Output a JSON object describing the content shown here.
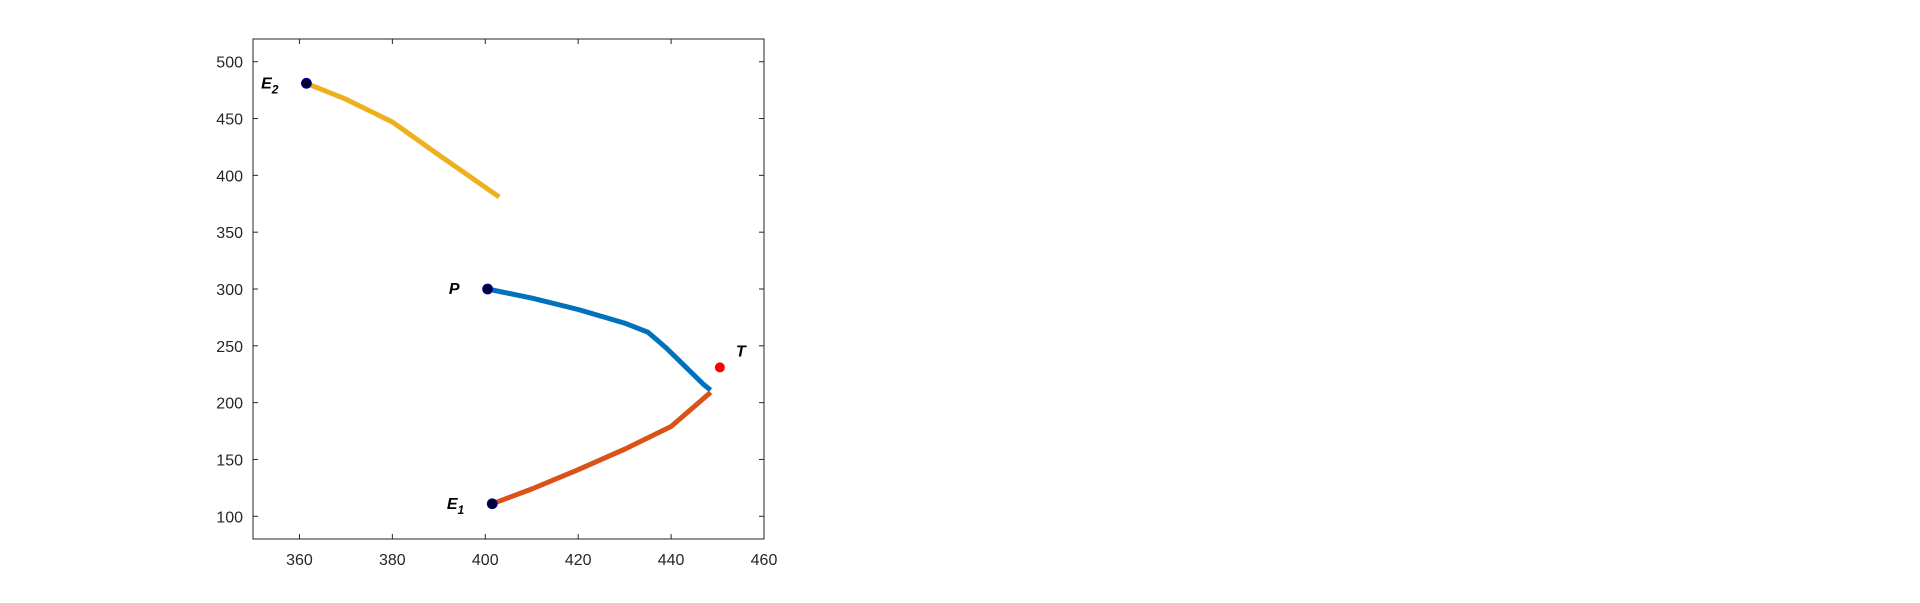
{
  "chart_data": {
    "type": "line",
    "title": "",
    "xlabel": "",
    "ylabel": "",
    "xlim": [
      350,
      460
    ],
    "ylim": [
      80,
      520
    ],
    "xticks": [
      360,
      380,
      400,
      420,
      440,
      460
    ],
    "yticks": [
      100,
      150,
      200,
      250,
      300,
      350,
      400,
      450,
      500
    ],
    "grid": false,
    "box": true,
    "series": [
      {
        "color": "#0072BD",
        "points": [
          [
            400.5,
            300
          ],
          [
            410,
            292
          ],
          [
            420,
            282
          ],
          [
            430,
            270
          ],
          [
            435,
            262
          ],
          [
            437,
            255
          ],
          [
            439,
            248
          ],
          [
            441,
            240
          ],
          [
            443,
            232
          ],
          [
            445,
            224
          ],
          [
            447,
            216
          ],
          [
            448.5,
            211
          ]
        ]
      },
      {
        "color": "#D95319",
        "points": [
          [
            401.5,
            111
          ],
          [
            410,
            124
          ],
          [
            420,
            141
          ],
          [
            430,
            159
          ],
          [
            440,
            179
          ],
          [
            448.5,
            209
          ]
        ]
      },
      {
        "color": "#EDB120",
        "points": [
          [
            361.5,
            481
          ],
          [
            370,
            467
          ],
          [
            380,
            447
          ],
          [
            390,
            418
          ],
          [
            403,
            381
          ]
        ]
      }
    ],
    "markers": [
      {
        "label": "P",
        "x": 400.5,
        "y": 300,
        "color": "#000033"
      },
      {
        "label": "E",
        "sub": "1",
        "x": 401.5,
        "y": 111,
        "color": "#000033"
      },
      {
        "label": "E",
        "sub": "2",
        "x": 361.5,
        "y": 481,
        "color": "#000033"
      },
      {
        "label": "T",
        "x": 450.5,
        "y": 231,
        "color": "#ff0000"
      }
    ]
  }
}
